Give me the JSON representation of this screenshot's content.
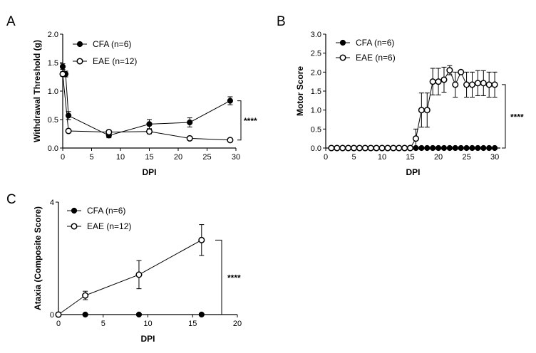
{
  "chart_data": [
    {
      "type": "line",
      "panel_label": "A",
      "xlabel": "DPI",
      "ylabel": "Withdrawal Threshold (g)",
      "xlim": [
        0,
        30
      ],
      "ylim": [
        0,
        2.0
      ],
      "xticks": [
        0,
        5,
        10,
        15,
        20,
        25,
        30
      ],
      "yticks": [
        0.0,
        0.5,
        1.0,
        1.5,
        2.0
      ],
      "xtick_labels": [
        "0",
        "5",
        "10",
        "15",
        "20",
        "25",
        "30"
      ],
      "ytick_labels": [
        "0.0",
        "0.5",
        "1.0",
        "1.5",
        "2.0"
      ],
      "legend_position": "top-right",
      "significance": "****",
      "series": [
        {
          "name": "CFA (n=6)",
          "marker": "filled-circle",
          "x": [
            0,
            0.5,
            1,
            8,
            15,
            22,
            29
          ],
          "y": [
            1.43,
            1.3,
            0.57,
            0.22,
            0.42,
            0.45,
            0.83
          ],
          "err": [
            0.05,
            0.05,
            0.07,
            0.04,
            0.08,
            0.08,
            0.07
          ]
        },
        {
          "name": "EAE (n=12)",
          "marker": "open-circle",
          "x": [
            0,
            1,
            8,
            15,
            22,
            29
          ],
          "y": [
            1.3,
            0.3,
            0.28,
            0.29,
            0.17,
            0.14
          ],
          "err": [
            0.04,
            0.03,
            0.03,
            0.04,
            0.03,
            0.02
          ]
        }
      ]
    },
    {
      "type": "line",
      "panel_label": "B",
      "xlabel": "DPI",
      "ylabel": "Motor Score",
      "xlim": [
        0,
        31
      ],
      "ylim": [
        0,
        3.0
      ],
      "xticks": [
        0,
        5,
        10,
        15,
        20,
        25,
        30
      ],
      "yticks": [
        0.0,
        0.5,
        1.0,
        1.5,
        2.0,
        2.5,
        3.0
      ],
      "xtick_labels": [
        "0",
        "5",
        "10",
        "15",
        "20",
        "25",
        "30"
      ],
      "ytick_labels": [
        "0.0",
        "0.5",
        "1.0",
        "1.5",
        "2.0",
        "2.5",
        "3.0"
      ],
      "legend_position": "top-left",
      "significance": "****",
      "series": [
        {
          "name": "CFA (n=6)",
          "marker": "filled-circle",
          "x": [
            1,
            2,
            3,
            4,
            5,
            6,
            7,
            8,
            9,
            10,
            11,
            12,
            13,
            14,
            15,
            16,
            17,
            18,
            19,
            20,
            21,
            22,
            23,
            24,
            25,
            26,
            27,
            28,
            29,
            30
          ],
          "y": [
            0,
            0,
            0,
            0,
            0,
            0,
            0,
            0,
            0,
            0,
            0,
            0,
            0,
            0,
            0,
            0,
            0,
            0,
            0,
            0,
            0,
            0,
            0,
            0,
            0,
            0,
            0,
            0,
            0,
            0
          ],
          "err": [
            0,
            0,
            0,
            0,
            0,
            0,
            0,
            0,
            0,
            0,
            0,
            0,
            0,
            0,
            0,
            0,
            0,
            0,
            0,
            0,
            0,
            0,
            0,
            0,
            0,
            0,
            0,
            0,
            0,
            0
          ]
        },
        {
          "name": "EAE (n=6)",
          "marker": "open-circle",
          "x": [
            1,
            2,
            3,
            4,
            5,
            6,
            7,
            8,
            9,
            10,
            11,
            12,
            13,
            14,
            15,
            16,
            17,
            18,
            19,
            20,
            21,
            22,
            23,
            24,
            25,
            26,
            27,
            28,
            29,
            30
          ],
          "y": [
            0,
            0,
            0,
            0,
            0,
            0,
            0,
            0,
            0,
            0,
            0,
            0,
            0,
            0,
            0,
            0.25,
            1.0,
            1.0,
            1.75,
            1.75,
            1.8,
            2.05,
            1.67,
            2.0,
            1.67,
            1.67,
            1.71,
            1.71,
            1.67,
            1.67
          ],
          "err": [
            0,
            0,
            0,
            0,
            0,
            0,
            0,
            0,
            0,
            0,
            0,
            0,
            0,
            0,
            0,
            0.25,
            0.45,
            0.45,
            0.35,
            0.35,
            0.33,
            0.12,
            0.33,
            0.0,
            0.33,
            0.33,
            0.33,
            0.33,
            0.33,
            0.33
          ]
        }
      ]
    },
    {
      "type": "line",
      "panel_label": "C",
      "xlabel": "DPI",
      "ylabel": "Ataxia (Composite Score)",
      "xlim": [
        0,
        20
      ],
      "ylim": [
        0,
        4
      ],
      "xticks": [
        0,
        5,
        10,
        15,
        20
      ],
      "yticks": [
        0,
        4
      ],
      "xtick_labels": [
        "0",
        "5",
        "10",
        "15",
        "20"
      ],
      "ytick_labels": [
        "0",
        "4"
      ],
      "legend_position": "top-left",
      "significance": "****",
      "series": [
        {
          "name": "CFA (n=6)",
          "marker": "filled-circle",
          "x": [
            0,
            3,
            9,
            16
          ],
          "y": [
            0,
            0,
            0,
            0
          ],
          "err": [
            0,
            0,
            0,
            0
          ]
        },
        {
          "name": "EAE (n=12)",
          "marker": "open-circle",
          "x": [
            0,
            3,
            9,
            16
          ],
          "y": [
            0,
            0.68,
            1.42,
            2.65
          ],
          "err": [
            0,
            0.15,
            0.5,
            0.55
          ]
        }
      ]
    }
  ]
}
